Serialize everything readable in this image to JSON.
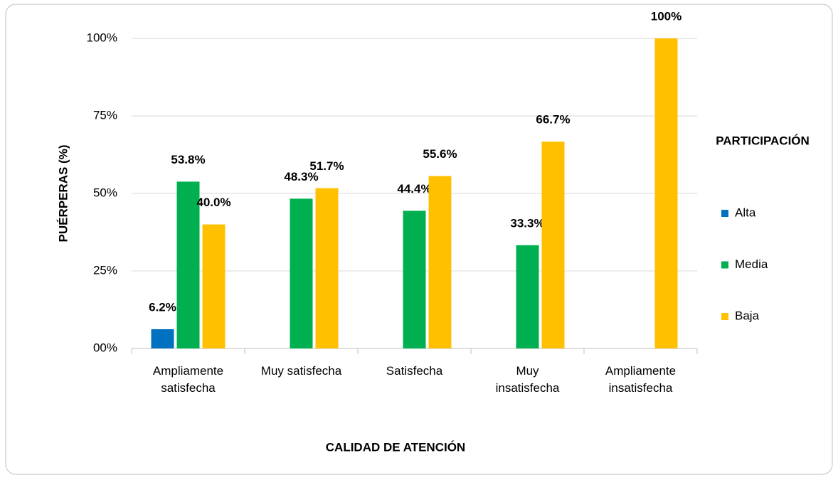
{
  "chart_data": {
    "type": "bar",
    "categories": [
      "Ampliamente satisfecha",
      "Muy satisfecha",
      "Satisfecha",
      "Muy insatisfecha",
      "Ampliamente insatisfecha"
    ],
    "series": [
      {
        "name": "Alta",
        "color": "#0070c0",
        "values": [
          6.2,
          null,
          null,
          null,
          null
        ],
        "value_labels": [
          "6.2%",
          null,
          null,
          null,
          null
        ]
      },
      {
        "name": "Media",
        "color": "#00b050",
        "values": [
          53.8,
          48.3,
          44.4,
          33.3,
          null
        ],
        "value_labels": [
          "53.8%",
          "48.3%",
          "44.4%",
          "33.3%",
          null
        ]
      },
      {
        "name": "Baja",
        "color": "#ffc000",
        "values": [
          40.0,
          51.7,
          55.6,
          66.7,
          100
        ],
        "value_labels": [
          "40.0%",
          "51.7%",
          "55.6%",
          "66.7%",
          "100%"
        ]
      }
    ],
    "ylim": [
      0,
      100
    ],
    "yticks": [
      {
        "value": 0,
        "label": "00%"
      },
      {
        "value": 25,
        "label": "25%"
      },
      {
        "value": 50,
        "label": "50%"
      },
      {
        "value": 75,
        "label": "75%"
      },
      {
        "value": 100,
        "label": "100%"
      }
    ],
    "grid": true,
    "xlabel": "CALIDAD DE ATENCIÓN",
    "ylabel": "PUÉRPERAS (%)",
    "legend_title": "PARTICIPACIÓN",
    "legend": "right"
  }
}
